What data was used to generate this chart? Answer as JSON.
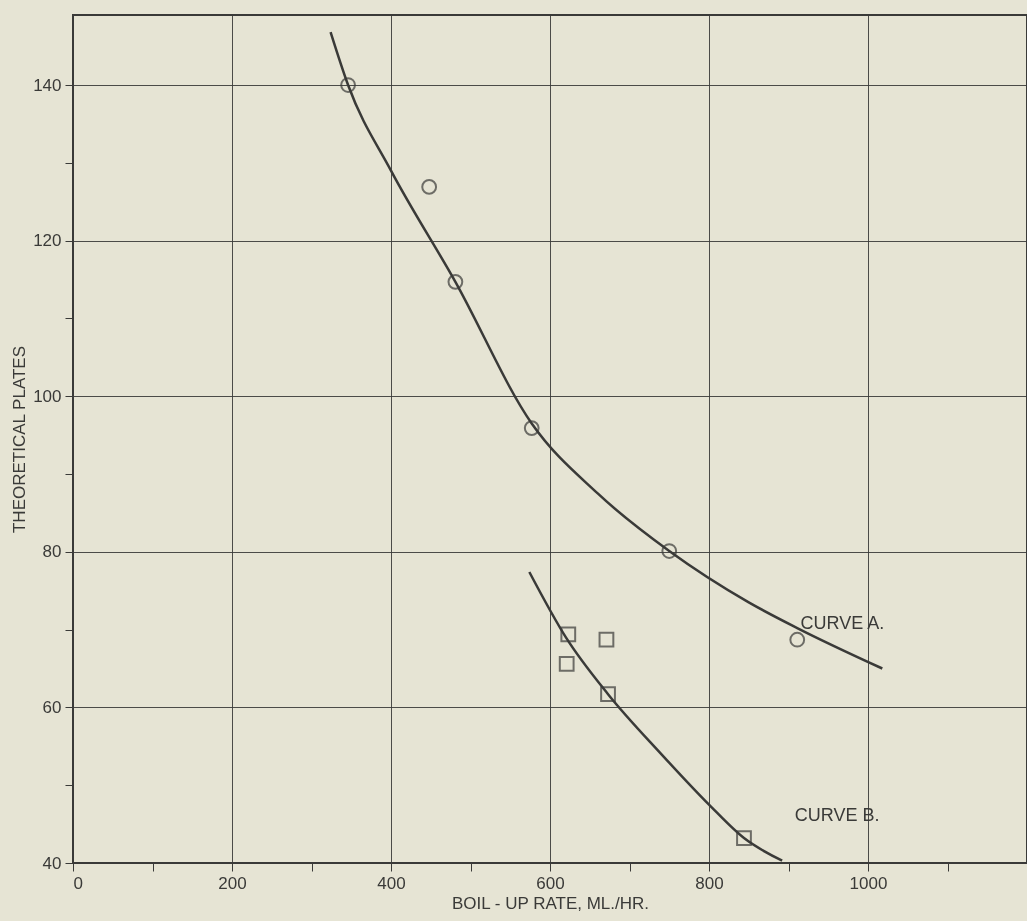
{
  "chart_data": {
    "type": "scatter",
    "xlabel": "BOIL - UP RATE, ML./HR.",
    "ylabel": "THEORETICAL PLATES",
    "xlim": [
      0,
      1200
    ],
    "ylim": [
      40,
      149
    ],
    "xticks": [
      0,
      {
        "value": 100,
        "label": null
      },
      200,
      {
        "value": 300,
        "label": null
      },
      400,
      {
        "value": 500,
        "label": null
      },
      600,
      {
        "value": 700,
        "label": null
      },
      800,
      {
        "value": 900,
        "label": null
      },
      1000,
      {
        "value": 1100,
        "label": null
      }
    ],
    "yticks": [
      40,
      {
        "value": 50,
        "label": null
      },
      60,
      {
        "value": 70,
        "label": null
      },
      80,
      {
        "value": 90,
        "label": null
      },
      100,
      {
        "value": 110,
        "label": null
      },
      120,
      {
        "value": 130,
        "label": null
      },
      140
    ],
    "grid": true,
    "series": [
      {
        "type": "line",
        "name": "CURVE A.",
        "color": "#3a3a38",
        "marker": "none",
        "x": [
          324,
          346,
          400,
          481,
          577,
          660,
          750,
          850,
          911,
          1018
        ],
        "values": [
          146.8,
          140,
          129,
          114.7,
          96.5,
          87.5,
          80.1,
          73.5,
          70.2,
          65
        ]
      },
      {
        "color": "#3a3a38",
        "marker": "circle",
        "x": [
          346,
          448,
          481,
          577,
          750,
          911
        ],
        "values": [
          140,
          126.9,
          114.7,
          95.9,
          80.1,
          68.7
        ]
      },
      {
        "type": "line",
        "name": "CURVE B.",
        "color": "#3a3a38",
        "marker": "none",
        "x": [
          574,
          620,
          673,
          740,
          800,
          844,
          892
        ],
        "values": [
          77.4,
          69,
          61.7,
          54,
          47.5,
          43.2,
          40.3
        ]
      },
      {
        "color": "#3a3a38",
        "marker": "square",
        "x": [
          623,
          621,
          671,
          673,
          844
        ],
        "values": [
          69.4,
          65.6,
          68.7,
          61.7,
          43.2
        ]
      }
    ]
  }
}
